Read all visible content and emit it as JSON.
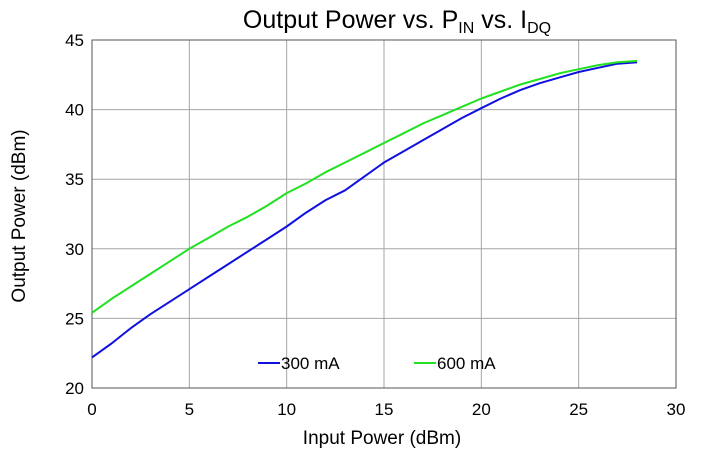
{
  "chart_data": {
    "type": "line",
    "title": {
      "prefix": "Output Power vs. P",
      "sub1": "IN",
      "middle": " vs. I",
      "sub2": "DQ"
    },
    "xlabel": "Input Power (dBm)",
    "ylabel": "Output Power (dBm)",
    "xlim": [
      0,
      30
    ],
    "ylim": [
      20,
      45
    ],
    "xticks": [
      0,
      5,
      10,
      15,
      20,
      25,
      30
    ],
    "yticks": [
      20,
      25,
      30,
      35,
      40,
      45
    ],
    "grid": true,
    "legend": "bottom-center",
    "series": [
      {
        "name": "300 mA",
        "color": "#1010e0",
        "x": [
          0,
          1,
          2,
          3,
          4,
          5,
          6,
          7,
          8,
          9,
          10,
          11,
          12,
          13,
          14,
          15,
          16,
          17,
          18,
          19,
          20,
          21,
          22,
          23,
          24,
          25,
          26,
          27,
          28
        ],
        "y": [
          22.2,
          23.2,
          24.3,
          25.3,
          26.2,
          27.1,
          28.0,
          28.9,
          29.8,
          30.7,
          31.6,
          32.6,
          33.5,
          34.2,
          35.2,
          36.2,
          37.0,
          37.8,
          38.6,
          39.4,
          40.1,
          40.8,
          41.4,
          41.9,
          42.3,
          42.7,
          43.0,
          43.3,
          43.4
        ]
      },
      {
        "name": "600 mA",
        "color": "#22e022",
        "x": [
          0,
          1,
          2,
          3,
          4,
          5,
          6,
          7,
          8,
          9,
          10,
          11,
          12,
          13,
          14,
          15,
          16,
          17,
          18,
          19,
          20,
          21,
          22,
          23,
          24,
          25,
          26,
          27,
          28
        ],
        "y": [
          25.4,
          26.4,
          27.3,
          28.2,
          29.1,
          30.0,
          30.8,
          31.6,
          32.3,
          33.1,
          34.0,
          34.7,
          35.5,
          36.2,
          36.9,
          37.6,
          38.3,
          39.0,
          39.6,
          40.2,
          40.8,
          41.3,
          41.8,
          42.2,
          42.6,
          42.9,
          43.2,
          43.4,
          43.5
        ]
      }
    ]
  }
}
